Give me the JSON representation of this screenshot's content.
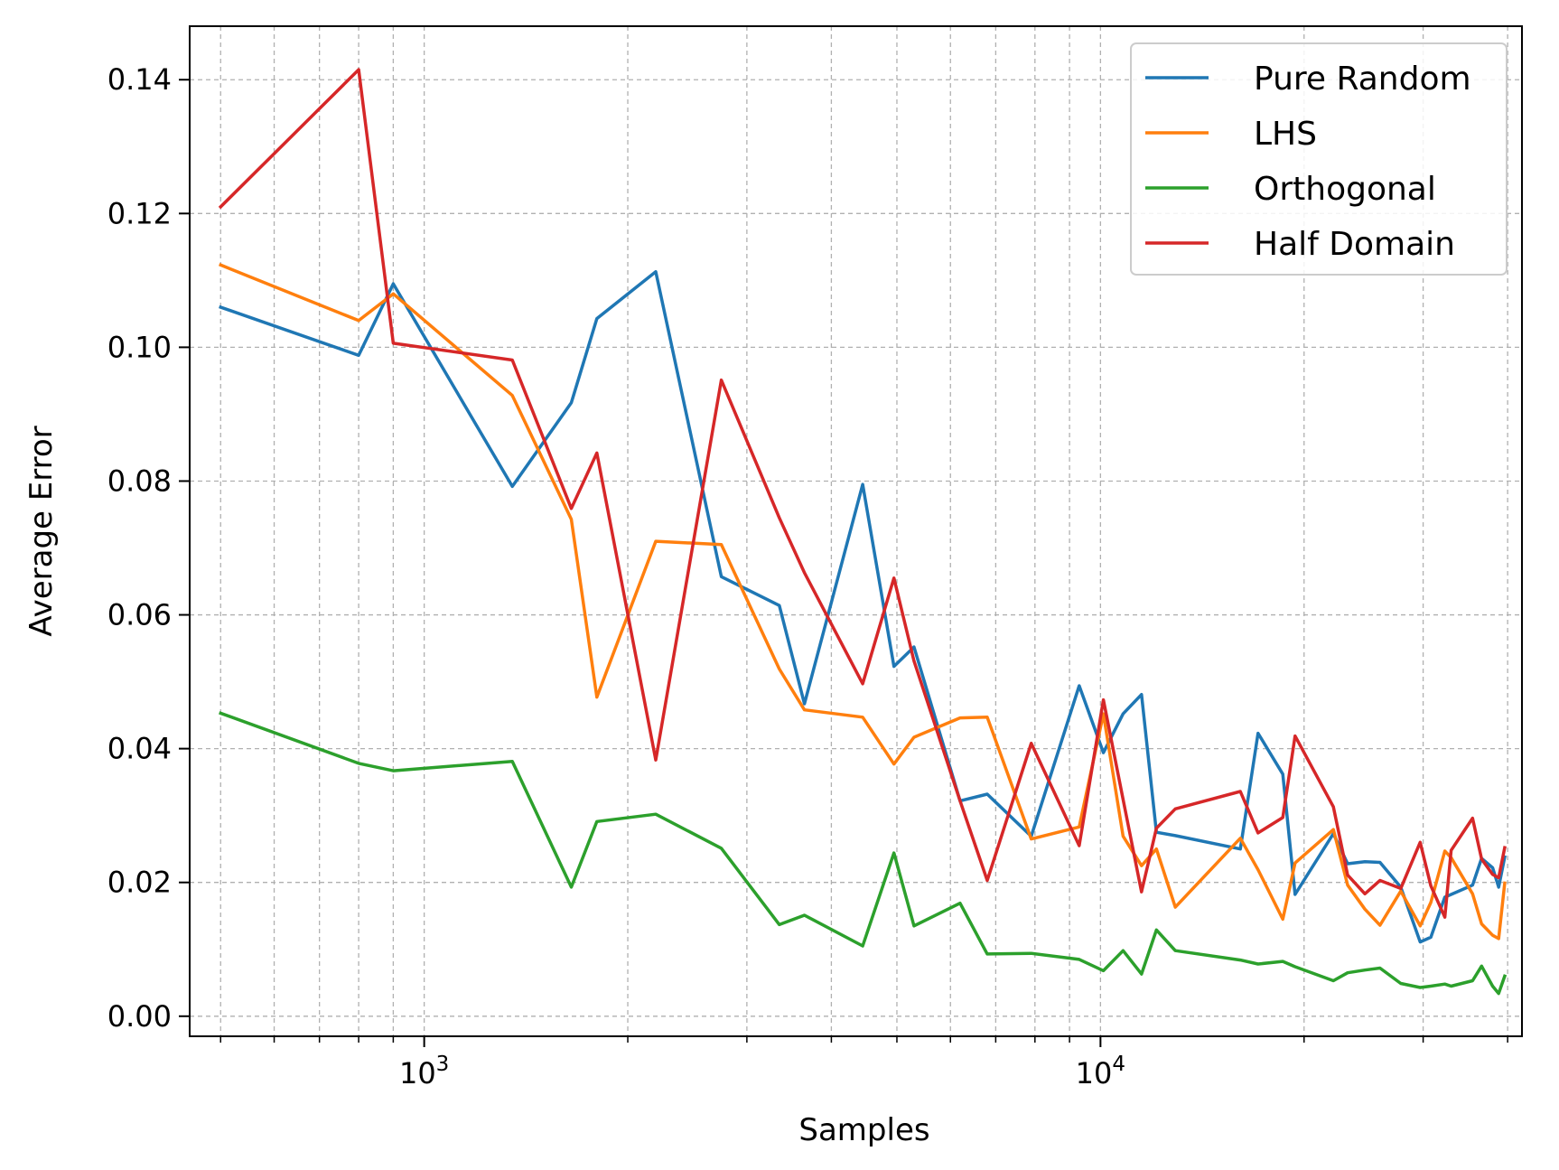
{
  "chart_data": {
    "type": "line",
    "title": "",
    "xlabel": "Samples",
    "ylabel": "Average Error",
    "xscale": "log",
    "xlim": [
      450,
      42000
    ],
    "ylim": [
      -0.003,
      0.148
    ],
    "grid": "both (major and minor, dashed)",
    "legend_position": "top-right",
    "x_ticks": [
      {
        "value": 1000,
        "base": "10",
        "exp": "3"
      },
      {
        "value": 10000,
        "base": "10",
        "exp": "4"
      }
    ],
    "y_ticks": [
      "0.00",
      "0.02",
      "0.04",
      "0.06",
      "0.08",
      "0.10",
      "0.12",
      "0.14"
    ],
    "x": [
      500,
      800,
      900,
      1350,
      1650,
      1800,
      2200,
      2750,
      3350,
      3650,
      4450,
      4950,
      5300,
      6200,
      6800,
      7900,
      9300,
      10100,
      10800,
      11500,
      12100,
      12900,
      16100,
      17100,
      18600,
      19400,
      22100,
      23200,
      24600,
      25900,
      27800,
      29700,
      30800,
      32300,
      33000,
      35500,
      36600,
      38000,
      38800,
      39600
    ],
    "series": [
      {
        "name": "Pure Random",
        "color": "#1f77b4",
        "values": [
          0.106,
          0.0988,
          0.1095,
          0.0792,
          0.0917,
          0.1043,
          0.1113,
          0.0657,
          0.0614,
          0.0467,
          0.0795,
          0.0523,
          0.0552,
          0.0322,
          0.0332,
          0.0269,
          0.0494,
          0.0394,
          0.0452,
          0.0481,
          0.0275,
          0.027,
          0.025,
          0.0423,
          0.0362,
          0.0182,
          0.0273,
          0.0228,
          0.0231,
          0.023,
          0.0193,
          0.0111,
          0.0118,
          0.0178,
          0.0182,
          0.0196,
          0.0236,
          0.0222,
          0.0193,
          0.0238
        ]
      },
      {
        "name": "LHS",
        "color": "#ff7f0e",
        "values": [
          0.1123,
          0.104,
          0.108,
          0.0928,
          0.0743,
          0.0477,
          0.071,
          0.0705,
          0.0519,
          0.0458,
          0.0447,
          0.0377,
          0.0417,
          0.0446,
          0.0447,
          0.0265,
          0.0283,
          0.0452,
          0.0269,
          0.0225,
          0.025,
          0.0163,
          0.0266,
          0.0219,
          0.0145,
          0.0229,
          0.0279,
          0.0196,
          0.016,
          0.0136,
          0.0187,
          0.0135,
          0.017,
          0.0247,
          0.0237,
          0.0183,
          0.0138,
          0.0121,
          0.0116,
          0.0199
        ]
      },
      {
        "name": "Orthogonal",
        "color": "#2ca02c",
        "values": [
          0.0453,
          0.0378,
          0.0367,
          0.0381,
          0.0193,
          0.0291,
          0.0302,
          0.0251,
          0.0137,
          0.0151,
          0.0105,
          0.0244,
          0.0135,
          0.0169,
          0.0093,
          0.0094,
          0.0085,
          0.0068,
          0.0098,
          0.0063,
          0.0129,
          0.0098,
          0.0084,
          0.0078,
          0.0082,
          0.0074,
          0.0053,
          0.0065,
          0.0069,
          0.0072,
          0.0049,
          0.0043,
          0.0045,
          0.0048,
          0.0045,
          0.0053,
          0.0075,
          0.0045,
          0.0034,
          0.006
        ]
      },
      {
        "name": "Half Domain",
        "color": "#d62728",
        "values": [
          0.121,
          0.1415,
          0.1006,
          0.0981,
          0.0759,
          0.0842,
          0.0383,
          0.0951,
          0.0745,
          0.0663,
          0.0497,
          0.0655,
          0.0531,
          0.0322,
          0.0203,
          0.0408,
          0.0255,
          0.0473,
          0.0324,
          0.0186,
          0.0281,
          0.031,
          0.0336,
          0.0274,
          0.0297,
          0.0419,
          0.0313,
          0.0211,
          0.0183,
          0.0203,
          0.0191,
          0.026,
          0.0195,
          0.0148,
          0.0248,
          0.0296,
          0.0235,
          0.0212,
          0.0207,
          0.0252
        ]
      }
    ]
  }
}
